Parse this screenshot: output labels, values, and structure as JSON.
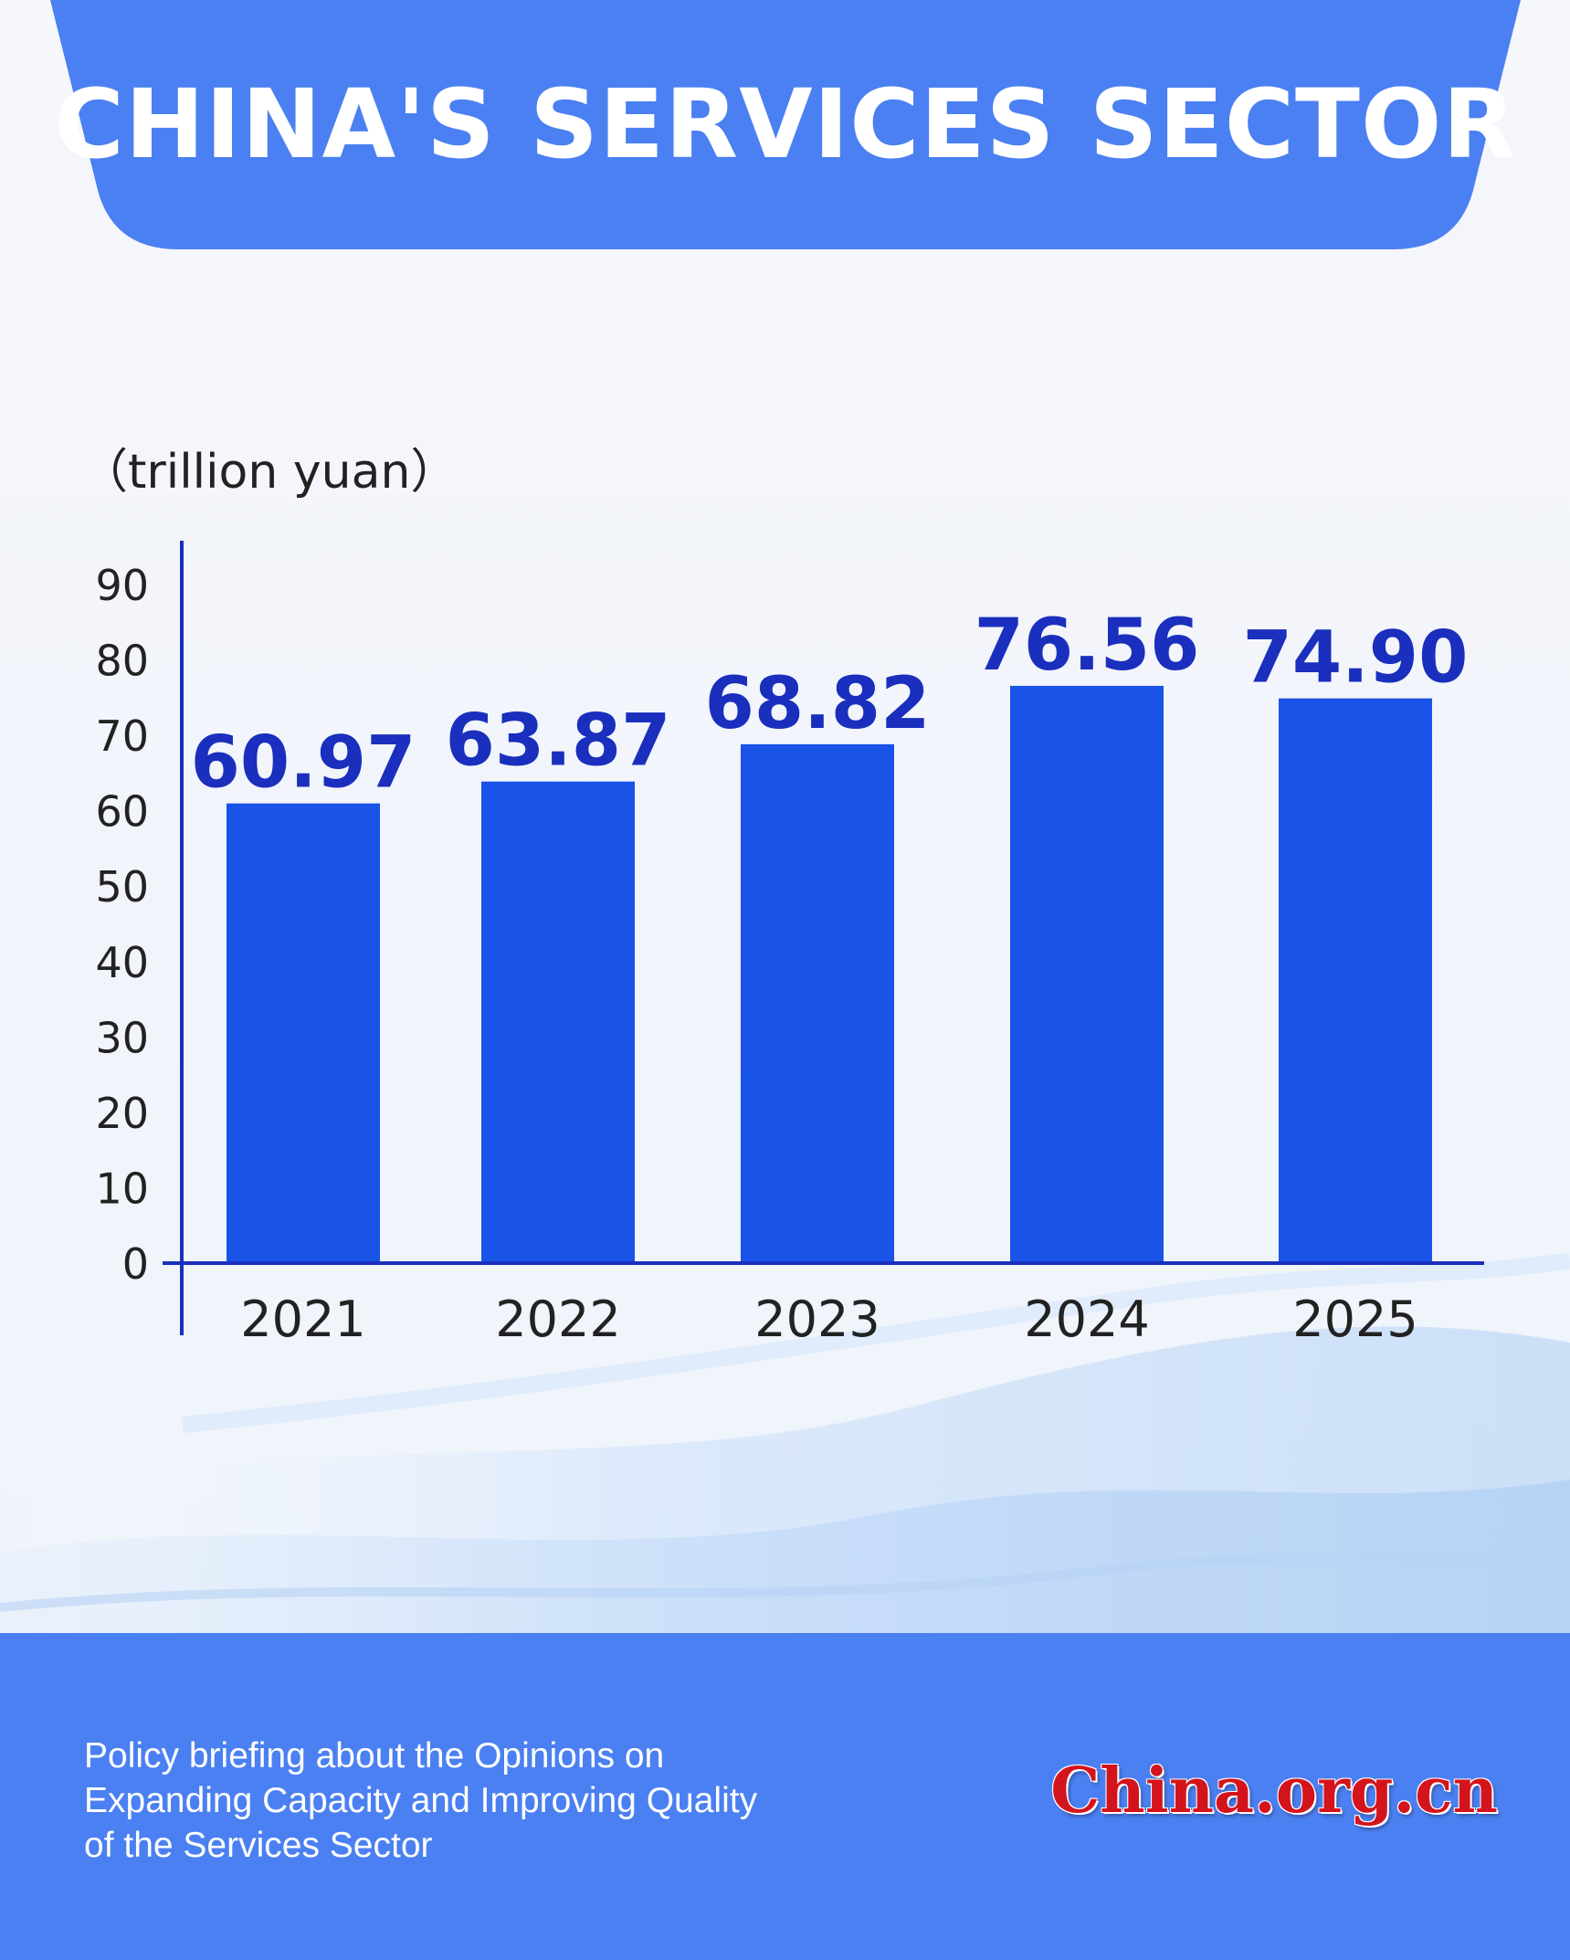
{
  "title": "CHINA'S SERVICES SECTOR",
  "footer": {
    "lines": [
      "Policy briefing about the Opinions on",
      "Expanding Capacity and Improving Quality",
      "of the Services Sector"
    ],
    "logo": "China.org.cn"
  },
  "colors": {
    "banner": "#4b80f2",
    "bar": "#1953e8",
    "value_label": "#1a2fbd",
    "axis": "#1a2fbd",
    "text": "#222222",
    "footer": "#4b80f2",
    "logo": "#d4141c"
  },
  "chart_data": {
    "type": "bar",
    "title": "CHINA'S SERVICES SECTOR",
    "ylabel": "（trillion yuan）",
    "xlabel": "",
    "categories": [
      "2021",
      "2022",
      "2023",
      "2024",
      "2025"
    ],
    "values": [
      60.97,
      63.87,
      68.82,
      76.56,
      74.9
    ],
    "value_labels": [
      "60.97",
      "63.87",
      "68.82",
      "76.56",
      "74.90"
    ],
    "ylim": [
      0,
      90
    ],
    "yticks": [
      0,
      10,
      20,
      30,
      40,
      50,
      60,
      70,
      80,
      90
    ],
    "grid": false,
    "legend": "none"
  }
}
